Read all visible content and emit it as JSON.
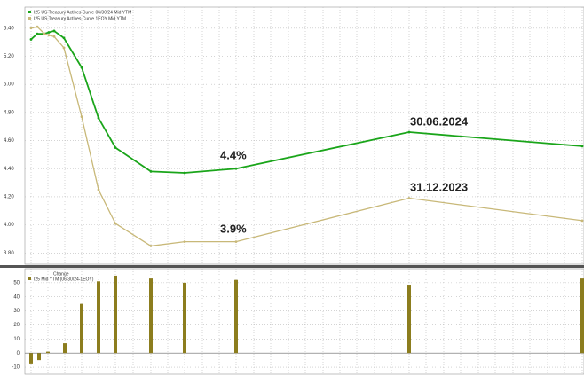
{
  "chart_data": [
    {
      "type": "line",
      "legend": [
        "I25 US Treasury Actives Curve 06/30/24 Mid YTM",
        "I25 US Treasury Actives Curve 1EOY Mid YTM"
      ],
      "categories": [
        null,
        null,
        null,
        null,
        null,
        null,
        null,
        null,
        null,
        null,
        null,
        null,
        null,
        null
      ],
      "series": [
        {
          "name": "I25 US Treasury Actives Curve 06/30/24 Mid YTM",
          "color": "#1aa51a",
          "values": [
            5.32,
            5.36,
            5.36,
            5.37,
            5.38,
            5.33,
            5.12,
            4.76,
            4.55,
            4.38,
            4.37,
            4.4,
            4.66,
            4.56
          ]
        },
        {
          "name": "I25 US Treasury Actives Curve 1EOY Mid YTM",
          "color": "#c8b878",
          "values": [
            5.4,
            5.41,
            5.36,
            5.35,
            5.34,
            5.26,
            4.77,
            4.25,
            4.01,
            3.85,
            3.88,
            3.88,
            4.19,
            4.03
          ]
        }
      ],
      "annotations": [
        "4.4%",
        "3.9%",
        "30.06.2024",
        "31.12.2023"
      ],
      "ylim": [
        3.72,
        5.55
      ],
      "yticks": [
        {
          "value": 3.8,
          "label": "3.80"
        },
        {
          "value": 4.0,
          "label": "4.00"
        },
        {
          "value": 4.2,
          "label": "4.20"
        },
        {
          "value": 4.4,
          "label": "4.40"
        },
        {
          "value": 4.6,
          "label": "4.60"
        },
        {
          "value": 4.8,
          "label": "4.80"
        },
        {
          "value": 5.0,
          "label": "5.00"
        },
        {
          "value": 5.2,
          "label": "5.20"
        },
        {
          "value": 5.4,
          "label": "5.40"
        }
      ],
      "grid": true
    },
    {
      "type": "bar",
      "title": "Change",
      "legend": [
        "I25 Mid YTM (06/30/24-1EOY)"
      ],
      "color": "#8c7d1e",
      "categories": [
        null,
        null,
        null,
        null,
        null,
        null,
        null,
        null,
        null,
        null,
        null,
        null
      ],
      "values": [
        -8,
        -5,
        1,
        7,
        35,
        51,
        55,
        53,
        50,
        52,
        48,
        53
      ],
      "ylim": [
        -15,
        60
      ],
      "yticks": [
        -10,
        0,
        10,
        20,
        30,
        40,
        50
      ],
      "grid": true
    }
  ]
}
